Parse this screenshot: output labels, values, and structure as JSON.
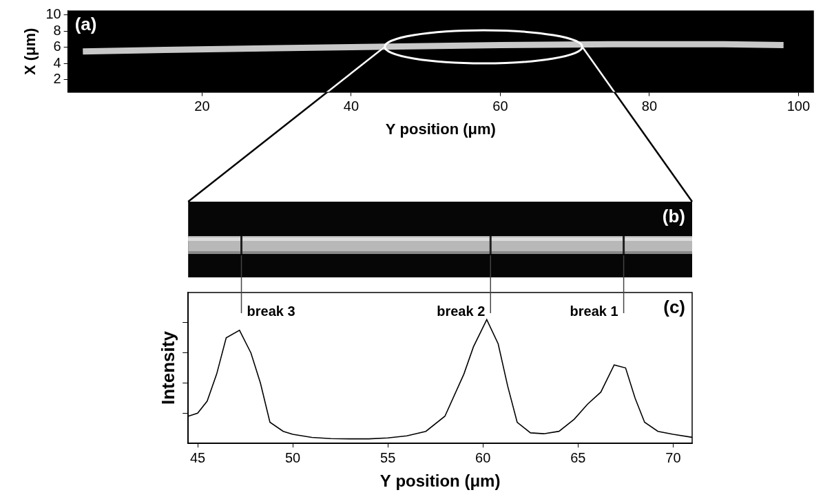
{
  "chart_data": [
    {
      "type": "line",
      "title": "(a)",
      "x_label": "Y position (μm)",
      "y_label": "X (μm)",
      "x": [
        4,
        15,
        30,
        45,
        60,
        75,
        90,
        98
      ],
      "values": [
        5.5,
        5.7,
        5.9,
        6.1,
        6.3,
        6.4,
        6.4,
        6.3
      ],
      "color": "#c8c8c8",
      "xlim": [
        2,
        102
      ],
      "xticks": [
        20,
        40,
        60,
        80,
        100
      ],
      "ylim": [
        0.5,
        10.5
      ],
      "yticks": [
        2,
        4,
        6,
        8,
        10
      ],
      "grid": false
    },
    {
      "type": "image",
      "title": "(b)"
    },
    {
      "type": "line",
      "title": "(c)",
      "x_label": "Y position (μm)",
      "y_label": "Intensity",
      "x": [
        44.5,
        45,
        45.5,
        46,
        46.5,
        47.2,
        47.8,
        48.3,
        48.8,
        49.5,
        50,
        51,
        52,
        53,
        54,
        55,
        56,
        57,
        58,
        59,
        59.5,
        60.2,
        60.8,
        61.3,
        61.8,
        62.5,
        63.2,
        64,
        64.8,
        65.5,
        66.2,
        66.9,
        67.5,
        68,
        68.5,
        69.2,
        70,
        71
      ],
      "values": [
        0.9,
        1.0,
        1.4,
        2.3,
        3.5,
        3.75,
        3.0,
        2.0,
        0.7,
        0.4,
        0.3,
        0.2,
        0.16,
        0.15,
        0.15,
        0.18,
        0.25,
        0.4,
        0.9,
        2.3,
        3.2,
        4.1,
        3.3,
        1.9,
        0.7,
        0.35,
        0.32,
        0.4,
        0.8,
        1.3,
        1.7,
        2.6,
        2.5,
        1.5,
        0.7,
        0.4,
        0.3,
        0.2
      ],
      "color": "#000000",
      "xlim": [
        44.5,
        71
      ],
      "xticks": [
        45,
        50,
        55,
        60,
        65,
        70
      ],
      "ylim": [
        0,
        5
      ],
      "yticks": [
        1,
        2,
        3,
        4
      ],
      "tick_labels": "x",
      "grid": false,
      "annotations": [
        {
          "text": "break 3",
          "x": 47.3
        },
        {
          "text": "break 2",
          "x": 60.4
        },
        {
          "text": "break 1",
          "x": 67.4
        }
      ]
    }
  ]
}
